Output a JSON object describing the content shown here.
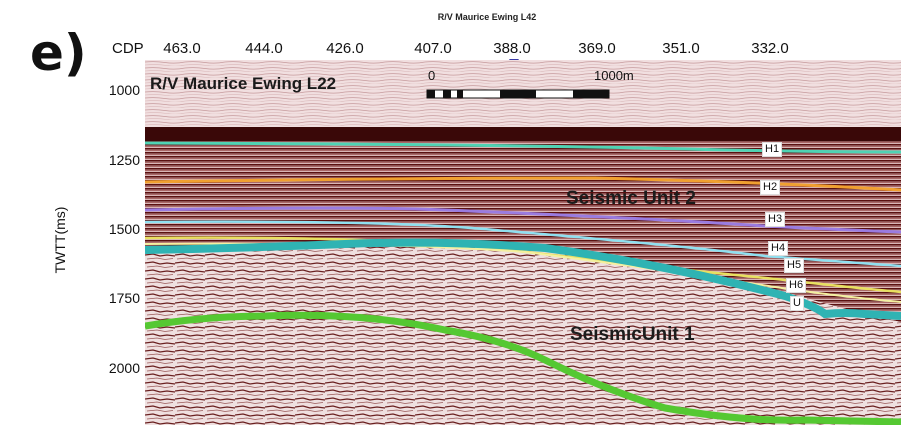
{
  "figure": {
    "panel_letter": "e)",
    "top_line_label": "R/V Maurice Ewing L42",
    "line_title": "R/V Maurice Ewing L22",
    "cdp_axis_label": "CDP",
    "cdp_ticks": [
      "463.0",
      "444.0",
      "426.0",
      "407.0",
      "388.0",
      "369.0",
      "351.0",
      "332.0"
    ],
    "y_axis_label": "TWTT(ms)",
    "y_ticks": [
      "1000",
      "1250",
      "1500",
      "1750",
      "2000"
    ],
    "scale_bar": {
      "start_label": "0",
      "end_label": "1000m"
    },
    "units": {
      "upper": "Seismic Unit 2",
      "lower": "SeismicUnit 1"
    },
    "horizons": [
      {
        "label": "H1",
        "color": "#4fd3b4"
      },
      {
        "label": "H2",
        "color": "#f0a030"
      },
      {
        "label": "H3",
        "color": "#9a7be0"
      },
      {
        "label": "H4",
        "color": "#8fe0f0"
      },
      {
        "label": "H5",
        "color": "#e8e060"
      },
      {
        "label": "H6",
        "color": "#f4f0a0"
      },
      {
        "label": "U",
        "color": "#2fb3b3"
      }
    ],
    "base_horizon_color": "#55c832",
    "background_color": "#f1dfe0",
    "reflector_color": "#5a1010"
  }
}
